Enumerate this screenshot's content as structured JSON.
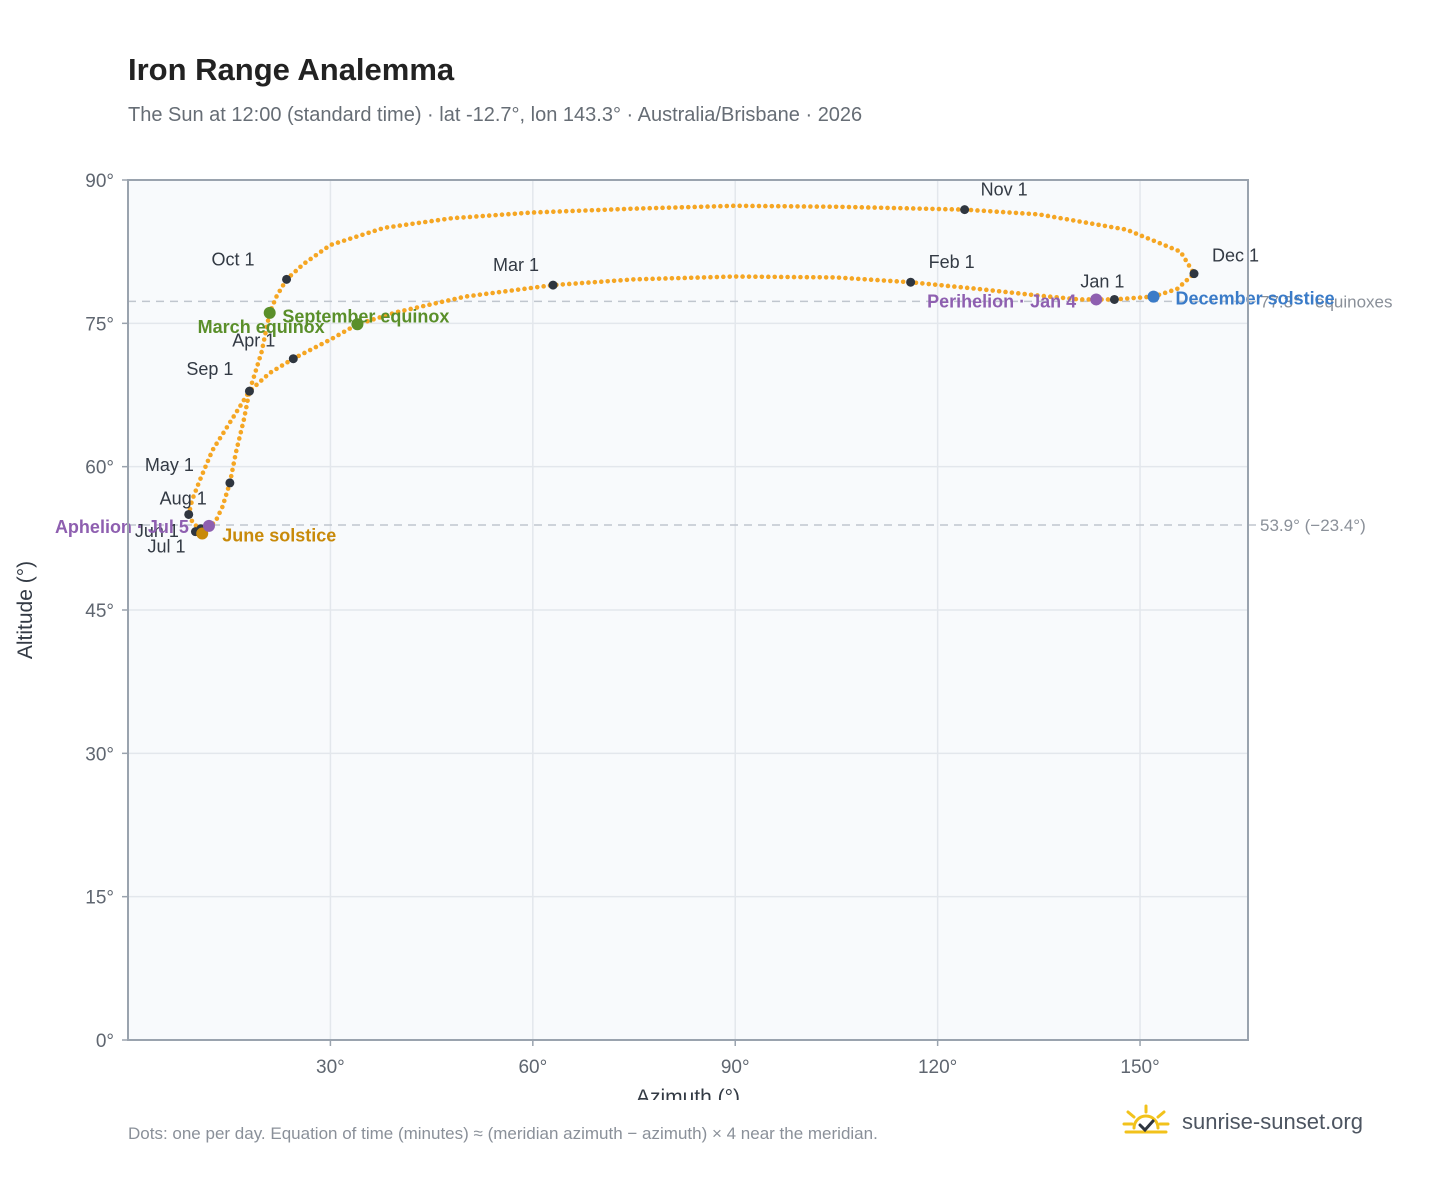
{
  "title": "Iron Range Analemma",
  "subtitle": "The Sun at 12:00 (standard time) · lat -12.7°, lon 143.3° · Australia/Brisbane · 2026",
  "footnote": "Dots: one per day. Equation of time (minutes) ≈ (meridian azimuth − azimuth) × 4 near the meridian.",
  "brand": {
    "name": "sunrise-sunset.org",
    "logo_icon": "sun-check-icon"
  },
  "colors": {
    "analemma": "#f5a623",
    "month_marker": "#2f3640",
    "equinox": "#5a8f2a",
    "june_solstice": "#c88a0a",
    "december_solstice": "#3a7bc8",
    "apsis": "#8e5fb0",
    "plot_bg": "#f8fafc",
    "grid": "#e3e7ec",
    "axis_frame": "#9aa3ae",
    "reference_line": "#c0c6ce"
  },
  "chart_data": {
    "type": "scatter",
    "xlabel": "Azimuth (°)",
    "ylabel": "Altitude (°)",
    "xlim": [
      0,
      166
    ],
    "ylim": [
      0,
      90
    ],
    "x_ticks": [
      "30°",
      "60°",
      "90°",
      "120°",
      "150°"
    ],
    "x_tick_values": [
      30,
      60,
      90,
      120,
      150
    ],
    "y_ticks": [
      "0°",
      "15°",
      "30°",
      "45°",
      "60°",
      "75°",
      "90°"
    ],
    "y_tick_values": [
      0,
      15,
      30,
      45,
      60,
      75,
      90
    ],
    "grid": true,
    "reference_lines": [
      {
        "y": 77.3,
        "label": "77.3° · equinoxes"
      },
      {
        "y": 53.9,
        "label": "53.9° (−23.4°)"
      }
    ],
    "analemma_path": [
      [
        146.2,
        77.5
      ],
      [
        152.0,
        77.8
      ],
      [
        155.5,
        78.6
      ],
      [
        158.0,
        80.2
      ],
      [
        156.0,
        82.5
      ],
      [
        148.0,
        84.8
      ],
      [
        135.0,
        86.4
      ],
      [
        124.0,
        86.9
      ],
      [
        105.0,
        87.2
      ],
      [
        90.0,
        87.3
      ],
      [
        75.0,
        87.0
      ],
      [
        60.0,
        86.6
      ],
      [
        48.0,
        86.0
      ],
      [
        38.0,
        85.0
      ],
      [
        30.0,
        83.2
      ],
      [
        26.0,
        81.2
      ],
      [
        23.5,
        79.6
      ],
      [
        22.0,
        77.8
      ],
      [
        21.0,
        76.1
      ],
      [
        19.8,
        72.0
      ],
      [
        18.0,
        67.9
      ],
      [
        15.0,
        64.5
      ],
      [
        12.5,
        61.7
      ],
      [
        10.6,
        58.5
      ],
      [
        9.5,
        56.5
      ],
      [
        9.0,
        55.0
      ],
      [
        9.7,
        54.0
      ],
      [
        10.8,
        53.5
      ],
      [
        12.0,
        53.7
      ],
      [
        13.0,
        54.3
      ],
      [
        14.0,
        55.8
      ],
      [
        15.1,
        58.3
      ],
      [
        16.0,
        61.5
      ],
      [
        17.2,
        65.0
      ],
      [
        18.0,
        67.9
      ],
      [
        21.0,
        69.8
      ],
      [
        24.5,
        71.3
      ],
      [
        30.0,
        73.3
      ],
      [
        34.0,
        74.9
      ],
      [
        40.0,
        76.2
      ],
      [
        50.0,
        77.8
      ],
      [
        63.0,
        79.0
      ],
      [
        75.0,
        79.6
      ],
      [
        90.0,
        79.9
      ],
      [
        105.0,
        79.8
      ],
      [
        116.0,
        79.3
      ],
      [
        126.0,
        78.6
      ],
      [
        135.0,
        77.9
      ],
      [
        141.0,
        77.5
      ],
      [
        146.2,
        77.5
      ]
    ],
    "month_markers": [
      {
        "label": "Jan 1",
        "x": 146.2,
        "y": 77.5
      },
      {
        "label": "Feb 1",
        "x": 116.0,
        "y": 79.3
      },
      {
        "label": "Mar 1",
        "x": 63.0,
        "y": 79.0
      },
      {
        "label": "Apr 1",
        "x": 24.5,
        "y": 71.3
      },
      {
        "label": "May 1",
        "x": 15.1,
        "y": 58.3
      },
      {
        "label": "Jun 1",
        "x": 10.8,
        "y": 53.5
      },
      {
        "label": "Jul 1",
        "x": 10.0,
        "y": 53.2
      },
      {
        "label": "Aug 1",
        "x": 9.0,
        "y": 55.0
      },
      {
        "label": "Sep 1",
        "x": 18.0,
        "y": 67.9
      },
      {
        "label": "Oct 1",
        "x": 23.5,
        "y": 79.6
      },
      {
        "label": "Nov 1",
        "x": 124.0,
        "y": 86.9
      },
      {
        "label": "Dec 1",
        "x": 158.0,
        "y": 80.2
      }
    ],
    "events": [
      {
        "label": "March equinox",
        "x": 21.0,
        "y": 76.1,
        "color_key": "equinox"
      },
      {
        "label": "September equinox",
        "x": 34.0,
        "y": 74.9,
        "color_key": "equinox"
      },
      {
        "label": "June solstice",
        "x": 11.0,
        "y": 53.0,
        "color_key": "june_solstice"
      },
      {
        "label": "December solstice",
        "x": 152.0,
        "y": 77.8,
        "color_key": "december_solstice"
      },
      {
        "label": "Aphelion · Jul 5",
        "x": 12.0,
        "y": 53.8,
        "color_key": "apsis"
      },
      {
        "label": "Perihelion · Jan 4",
        "x": 143.5,
        "y": 77.5,
        "color_key": "apsis"
      }
    ]
  }
}
